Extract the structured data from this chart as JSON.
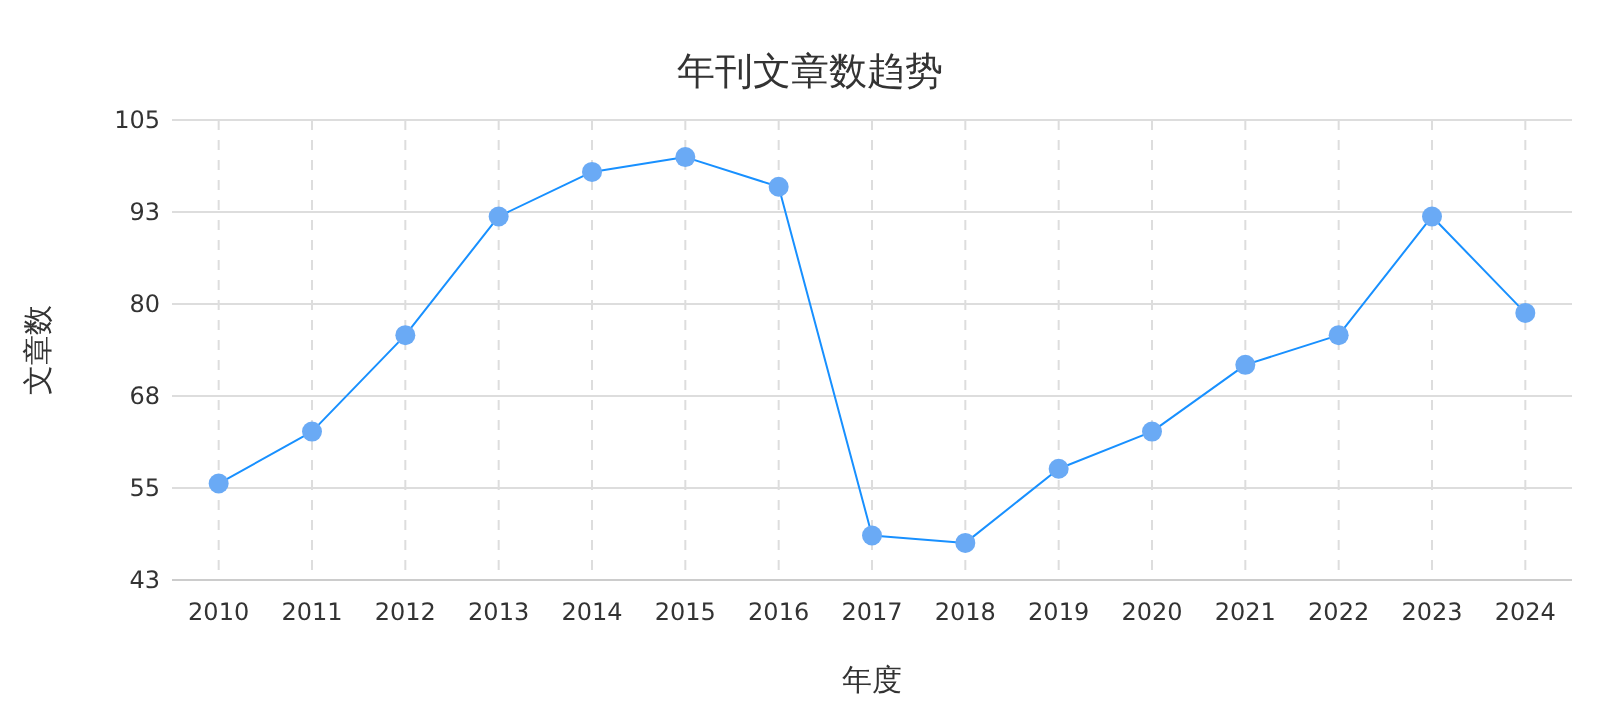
{
  "chart_data": {
    "type": "line",
    "title": "年刊文章数趋势",
    "xlabel": "年度",
    "ylabel": "文章数",
    "categories": [
      "2010",
      "2011",
      "2012",
      "2013",
      "2014",
      "2015",
      "2016",
      "2017",
      "2018",
      "2019",
      "2020",
      "2021",
      "2022",
      "2023",
      "2024"
    ],
    "series": [
      {
        "color": "#1890ff",
        "values": [
          56,
          63,
          76,
          92,
          98,
          100,
          96,
          49,
          48,
          58,
          63,
          72,
          76,
          92,
          79
        ]
      }
    ],
    "ylim": [
      43,
      105
    ],
    "yticks": [
      43,
      {
        "value": 55.4,
        "label": "55"
      },
      {
        "value": 67.8,
        "label": "68"
      },
      {
        "value": 80.2,
        "label": "80"
      },
      {
        "value": 92.6,
        "label": "93"
      },
      105
    ],
    "grid": true,
    "marker": "circle",
    "line_style": "solid"
  }
}
